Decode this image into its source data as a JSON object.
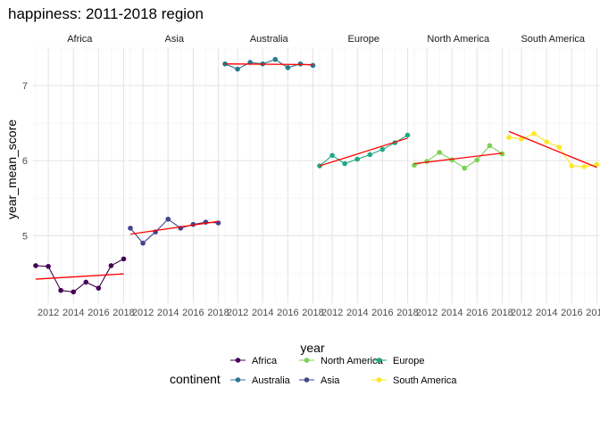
{
  "chart_data": {
    "type": "line",
    "title": "happiness: 2011-2018 region",
    "xlabel": "year",
    "ylabel": "year_mean_score",
    "x": [
      2011,
      2012,
      2013,
      2014,
      2015,
      2016,
      2017,
      2018
    ],
    "x_ticks": [
      "2012",
      "2014",
      "2016",
      "2018"
    ],
    "y_ticks": [
      5,
      6,
      7
    ],
    "ylim": [
      4.1,
      7.5
    ],
    "grid": true,
    "panels": [
      "Africa",
      "Asia",
      "Australia",
      "Europe",
      "North America",
      "South America"
    ],
    "legend_title": "continent",
    "legend_position": "bottom",
    "series": [
      {
        "name": "Africa",
        "color": "#440154",
        "values": [
          4.6,
          4.59,
          4.27,
          4.25,
          4.38,
          4.3,
          4.6,
          4.69
        ],
        "trend": [
          4.42,
          4.49
        ]
      },
      {
        "name": "Asia",
        "color": "#414487",
        "values": [
          5.1,
          4.9,
          5.05,
          5.22,
          5.1,
          5.15,
          5.18,
          5.17
        ],
        "trend": [
          5.02,
          5.19
        ]
      },
      {
        "name": "Australia",
        "color": "#2A788E",
        "values": [
          7.29,
          7.22,
          7.31,
          7.29,
          7.35,
          7.24,
          7.29,
          7.27
        ],
        "trend": [
          7.29,
          7.28
        ]
      },
      {
        "name": "Europe",
        "color": "#22A884",
        "values": [
          5.93,
          6.07,
          5.96,
          6.02,
          6.08,
          6.15,
          6.24,
          6.34
        ],
        "trend": [
          5.93,
          6.3
        ]
      },
      {
        "name": "North America",
        "color": "#7AD151",
        "values": [
          5.94,
          5.99,
          6.11,
          6.01,
          5.9,
          6.01,
          6.2,
          6.09
        ],
        "trend": [
          5.96,
          6.1
        ]
      },
      {
        "name": "South America",
        "color": "#FDE725",
        "values": [
          6.31,
          6.29,
          6.36,
          6.25,
          6.18,
          5.93,
          5.92,
          5.95
        ],
        "trend": [
          6.39,
          5.91
        ]
      }
    ],
    "trend_color": "#FF0000",
    "legend_order": [
      "Africa",
      "Australia",
      "North America",
      "Asia",
      "Europe",
      "South America"
    ]
  }
}
